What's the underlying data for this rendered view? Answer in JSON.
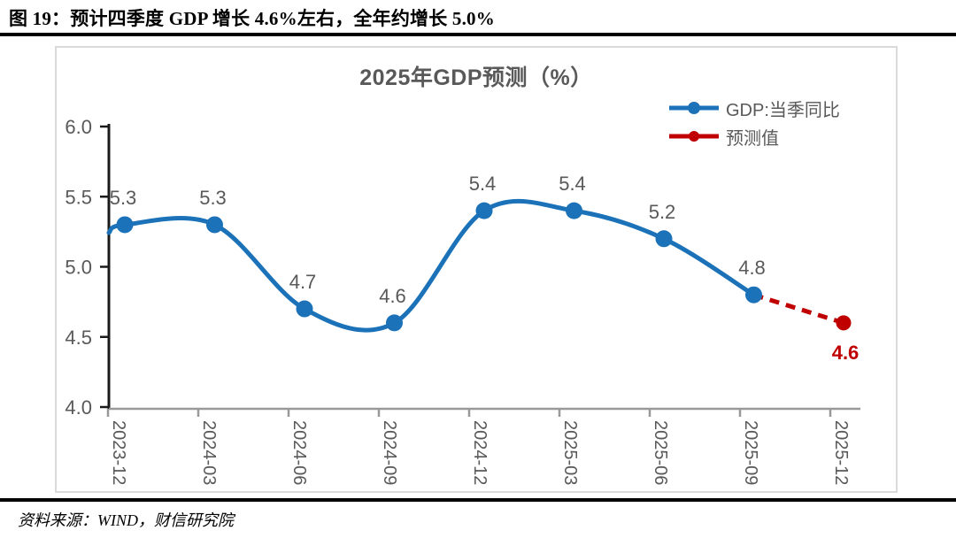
{
  "header": {
    "figure_title": "图 19：预计四季度 GDP 增长 4.6%左右，全年约增长 5.0%"
  },
  "footer": {
    "source": "资料来源：WIND，财信研究院"
  },
  "chart_data": {
    "type": "line",
    "title": "2025年GDP预测（%）",
    "categories": [
      "2023-12",
      "2024-03",
      "2024-06",
      "2024-09",
      "2024-12",
      "2025-03",
      "2025-06",
      "2025-09",
      "2025-12"
    ],
    "series": [
      {
        "name": "GDP:当季同比",
        "color": "#1B72B8",
        "line_style": "solid",
        "marker": "circle",
        "values": [
          5.3,
          5.3,
          4.7,
          4.6,
          5.4,
          5.4,
          5.2,
          4.8,
          null
        ]
      },
      {
        "name": "预测值",
        "color": "#C00000",
        "line_style": "dashed",
        "marker": "circle",
        "values": [
          null,
          null,
          null,
          null,
          null,
          null,
          null,
          4.8,
          4.6
        ]
      }
    ],
    "data_labels": [
      "5.3",
      "5.3",
      "4.7",
      "4.6",
      "5.4",
      "5.4",
      "5.2",
      "4.8",
      "4.6"
    ],
    "ylim": [
      4.0,
      6.0
    ],
    "yticks": [
      "6.0",
      "5.5",
      "5.0",
      "4.5",
      "4.0"
    ],
    "grid": false,
    "smooth": true,
    "legend_position": "top-right",
    "colors": {
      "label_gray": "#595959",
      "x_axis": "#999999",
      "y_axis": "#1a1a1a",
      "frame_border": "#DADADA"
    }
  }
}
